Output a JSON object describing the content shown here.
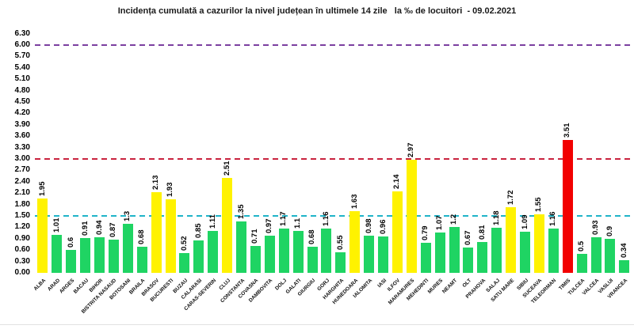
{
  "title": "Incidența cumulată a cazurilor la nivel județean în ultimele 14 zile   la ‰ de locuitori  - 09.02.2021",
  "chart_data": {
    "type": "bar",
    "title": "Incidența cumulată a cazurilor la nivel județean în ultimele 14 zile la ‰ de locuitori - 09.02.2021",
    "xlabel": "",
    "ylabel": "",
    "ylim": [
      0,
      6.3
    ],
    "ytick_step": 0.3,
    "yticks": [
      "0.00",
      "0.30",
      "0.60",
      "0.90",
      "1.20",
      "1.50",
      "1.80",
      "2.10",
      "2.40",
      "2.70",
      "3.00",
      "3.30",
      "3.60",
      "3.90",
      "4.20",
      "4.50",
      "4.80",
      "5.10",
      "5.40",
      "5.70",
      "6.00",
      "6.30"
    ],
    "grid": false,
    "legend": "none",
    "categories": [
      "ALBA",
      "ARAD",
      "ARGES",
      "BACAU",
      "BIHOR",
      "BISTRITA NASAUD",
      "BOTOSANI",
      "BRAILA",
      "BRASOV",
      "BUCURESTI",
      "BUZAU",
      "CALARASI",
      "CARAS-SEVERIN",
      "CLUJ",
      "CONSTANTA",
      "COVASNA",
      "DAMBOVITA",
      "DOLJ",
      "GALATI",
      "GIURGIU",
      "GORJ",
      "HARGHITA",
      "HUNEDOARA",
      "IALOMITA",
      "IASI",
      "ILFOV",
      "MARAMURES",
      "MEHEDINTI",
      "MURES",
      "NEAMT",
      "OLT",
      "PRAHOVA",
      "SALAJ",
      "SATU MARE",
      "SIBIU",
      "SUCEAVA",
      "TELEORMAN",
      "TIMIS",
      "TULCEA",
      "VALCEA",
      "VASLUI",
      "VRANCEA"
    ],
    "values": [
      1.95,
      1.01,
      0.6,
      0.91,
      0.94,
      0.87,
      1.3,
      0.68,
      2.13,
      1.93,
      0.52,
      0.85,
      1.11,
      2.51,
      1.35,
      0.71,
      0.97,
      1.17,
      1.1,
      0.68,
      1.16,
      0.55,
      1.63,
      0.98,
      0.96,
      2.14,
      2.97,
      0.79,
      1.07,
      1.2,
      0.67,
      0.81,
      1.18,
      1.72,
      1.09,
      1.55,
      1.16,
      3.51,
      0.5,
      0.93,
      0.9,
      0.34
    ],
    "bar_colors": [
      "yellow",
      "green",
      "green",
      "green",
      "green",
      "green",
      "green",
      "green",
      "yellow",
      "yellow",
      "green",
      "green",
      "green",
      "yellow",
      "green",
      "green",
      "green",
      "green",
      "green",
      "green",
      "green",
      "green",
      "yellow",
      "green",
      "green",
      "yellow",
      "yellow",
      "green",
      "green",
      "green",
      "green",
      "green",
      "green",
      "yellow",
      "green",
      "yellow",
      "green",
      "red",
      "green",
      "green",
      "green",
      "green"
    ],
    "palette": {
      "green": "#1FD463",
      "yellow": "#FFF200",
      "red": "#F20000"
    },
    "reference_lines": [
      {
        "value": 6.0,
        "color": "#7B3FA0",
        "style": "dashed"
      },
      {
        "value": 3.0,
        "color": "#C9233E",
        "style": "dashed"
      },
      {
        "value": 1.5,
        "color": "#1FB4C8",
        "style": "dashed"
      }
    ]
  }
}
